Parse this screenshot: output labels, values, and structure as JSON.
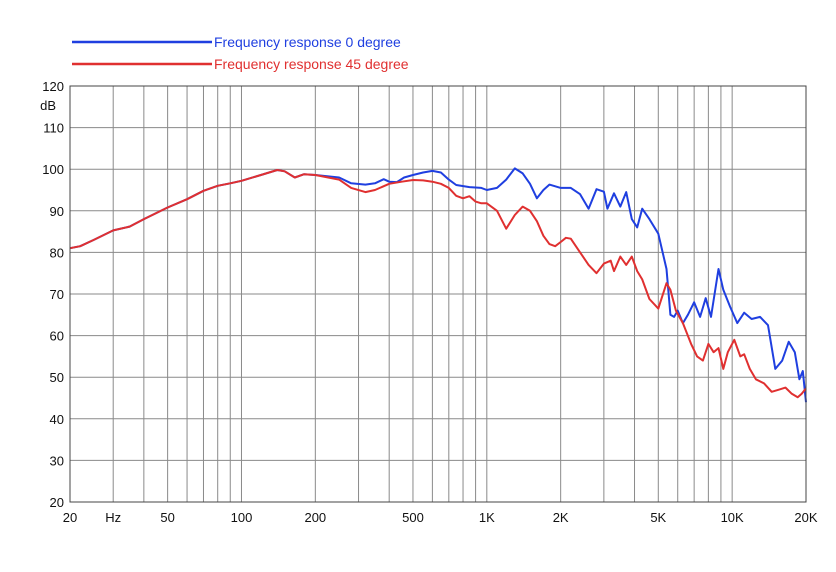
{
  "chart_data": {
    "type": "line",
    "title": "",
    "xlabel": "",
    "ylabel": "dB",
    "x_scale": "log",
    "xlim": [
      20,
      20000
    ],
    "ylim": [
      20,
      120
    ],
    "grid": true,
    "legend_position": "top-left",
    "y_ticks": [
      20,
      30,
      40,
      50,
      60,
      70,
      80,
      90,
      100,
      110,
      120
    ],
    "x_tick_labels": [
      {
        "value": 20,
        "label": "20"
      },
      {
        "value": 30,
        "label": "Hz"
      },
      {
        "value": 50,
        "label": "50"
      },
      {
        "value": 100,
        "label": "100"
      },
      {
        "value": 200,
        "label": "200"
      },
      {
        "value": 500,
        "label": "500"
      },
      {
        "value": 1000,
        "label": "1K"
      },
      {
        "value": 2000,
        "label": "2K"
      },
      {
        "value": 5000,
        "label": "5K"
      },
      {
        "value": 10000,
        "label": "10K"
      },
      {
        "value": 20000,
        "label": "20K"
      }
    ],
    "x_gridlines": [
      30,
      40,
      50,
      60,
      70,
      80,
      90,
      100,
      200,
      300,
      400,
      500,
      600,
      700,
      800,
      900,
      1000,
      2000,
      3000,
      4000,
      5000,
      6000,
      7000,
      8000,
      9000,
      10000
    ],
    "series": [
      {
        "name": "Frequency response 0 degree",
        "color": "#1f3fe0",
        "points": [
          [
            20,
            81
          ],
          [
            22,
            81.5
          ],
          [
            25,
            83
          ],
          [
            30,
            85.3
          ],
          [
            35,
            86.2
          ],
          [
            40,
            88
          ],
          [
            50,
            90.8
          ],
          [
            60,
            92.8
          ],
          [
            70,
            94.8
          ],
          [
            80,
            96
          ],
          [
            90,
            96.6
          ],
          [
            100,
            97.2
          ],
          [
            120,
            98.6
          ],
          [
            140,
            99.8
          ],
          [
            150,
            99.5
          ],
          [
            165,
            98
          ],
          [
            180,
            98.8
          ],
          [
            200,
            98.6
          ],
          [
            250,
            98
          ],
          [
            280,
            96.6
          ],
          [
            320,
            96.3
          ],
          [
            350,
            96.6
          ],
          [
            380,
            97.6
          ],
          [
            400,
            97
          ],
          [
            430,
            96.9
          ],
          [
            460,
            98
          ],
          [
            500,
            98.6
          ],
          [
            550,
            99.2
          ],
          [
            600,
            99.6
          ],
          [
            650,
            99.2
          ],
          [
            700,
            97.5
          ],
          [
            750,
            96.2
          ],
          [
            850,
            95.7
          ],
          [
            950,
            95.5
          ],
          [
            1000,
            95
          ],
          [
            1100,
            95.5
          ],
          [
            1200,
            97.5
          ],
          [
            1300,
            100.2
          ],
          [
            1400,
            99
          ],
          [
            1500,
            96.5
          ],
          [
            1600,
            93
          ],
          [
            1700,
            95
          ],
          [
            1800,
            96.3
          ],
          [
            2000,
            95.5
          ],
          [
            2200,
            95.5
          ],
          [
            2400,
            94
          ],
          [
            2600,
            90.5
          ],
          [
            2800,
            95.2
          ],
          [
            3000,
            94.6
          ],
          [
            3100,
            90.5
          ],
          [
            3300,
            94.2
          ],
          [
            3500,
            91
          ],
          [
            3700,
            94.5
          ],
          [
            3900,
            88
          ],
          [
            4100,
            86
          ],
          [
            4300,
            90.5
          ],
          [
            4600,
            88
          ],
          [
            5000,
            84.5
          ],
          [
            5400,
            76
          ],
          [
            5600,
            65
          ],
          [
            5800,
            64.5
          ],
          [
            6000,
            66
          ],
          [
            6300,
            63
          ],
          [
            6600,
            65
          ],
          [
            7000,
            68
          ],
          [
            7400,
            64.5
          ],
          [
            7800,
            69
          ],
          [
            8200,
            64.5
          ],
          [
            8800,
            76
          ],
          [
            9200,
            71
          ],
          [
            9800,
            67
          ],
          [
            10500,
            63
          ],
          [
            11200,
            65.5
          ],
          [
            12000,
            64
          ],
          [
            13000,
            64.5
          ],
          [
            14000,
            62.5
          ],
          [
            15000,
            52
          ],
          [
            16000,
            54
          ],
          [
            17000,
            58.5
          ],
          [
            18000,
            56
          ],
          [
            18800,
            49.5
          ],
          [
            19400,
            51.5
          ],
          [
            20000,
            44
          ]
        ]
      },
      {
        "name": "Frequency response 45 degree",
        "color": "#e03030",
        "points": [
          [
            20,
            81
          ],
          [
            22,
            81.5
          ],
          [
            25,
            83
          ],
          [
            30,
            85.3
          ],
          [
            35,
            86.2
          ],
          [
            40,
            88
          ],
          [
            50,
            90.8
          ],
          [
            60,
            92.8
          ],
          [
            70,
            94.8
          ],
          [
            80,
            96
          ],
          [
            90,
            96.6
          ],
          [
            100,
            97.2
          ],
          [
            120,
            98.6
          ],
          [
            140,
            99.8
          ],
          [
            150,
            99.5
          ],
          [
            165,
            98
          ],
          [
            180,
            98.8
          ],
          [
            200,
            98.6
          ],
          [
            250,
            97.5
          ],
          [
            280,
            95.5
          ],
          [
            320,
            94.5
          ],
          [
            350,
            95
          ],
          [
            400,
            96.5
          ],
          [
            450,
            97
          ],
          [
            500,
            97.4
          ],
          [
            550,
            97.3
          ],
          [
            600,
            97
          ],
          [
            650,
            96.5
          ],
          [
            700,
            95.5
          ],
          [
            750,
            93.6
          ],
          [
            800,
            93
          ],
          [
            850,
            93.5
          ],
          [
            900,
            92.2
          ],
          [
            950,
            91.8
          ],
          [
            1000,
            91.8
          ],
          [
            1100,
            90
          ],
          [
            1200,
            85.7
          ],
          [
            1300,
            89
          ],
          [
            1400,
            91
          ],
          [
            1500,
            90
          ],
          [
            1600,
            87.5
          ],
          [
            1700,
            84
          ],
          [
            1800,
            82
          ],
          [
            1900,
            81.5
          ],
          [
            2000,
            82.5
          ],
          [
            2100,
            83.5
          ],
          [
            2200,
            83.3
          ],
          [
            2400,
            80
          ],
          [
            2600,
            77
          ],
          [
            2800,
            75
          ],
          [
            3000,
            77.3
          ],
          [
            3200,
            78
          ],
          [
            3300,
            75.5
          ],
          [
            3500,
            79
          ],
          [
            3700,
            77
          ],
          [
            3900,
            79
          ],
          [
            4100,
            75.5
          ],
          [
            4300,
            73.5
          ],
          [
            4600,
            68.8
          ],
          [
            5000,
            66.5
          ],
          [
            5400,
            72.6
          ],
          [
            5600,
            71
          ],
          [
            5900,
            66
          ],
          [
            6300,
            63
          ],
          [
            6800,
            58
          ],
          [
            7200,
            55
          ],
          [
            7600,
            54
          ],
          [
            8000,
            58
          ],
          [
            8400,
            56
          ],
          [
            8800,
            57
          ],
          [
            9200,
            52
          ],
          [
            9600,
            56
          ],
          [
            10200,
            59
          ],
          [
            10800,
            55
          ],
          [
            11200,
            55.5
          ],
          [
            11800,
            52
          ],
          [
            12500,
            49.5
          ],
          [
            13500,
            48.5
          ],
          [
            14500,
            46.5
          ],
          [
            15500,
            47
          ],
          [
            16500,
            47.5
          ],
          [
            17500,
            46
          ],
          [
            18500,
            45.2
          ],
          [
            19200,
            46
          ],
          [
            20000,
            47.3
          ]
        ]
      }
    ]
  }
}
